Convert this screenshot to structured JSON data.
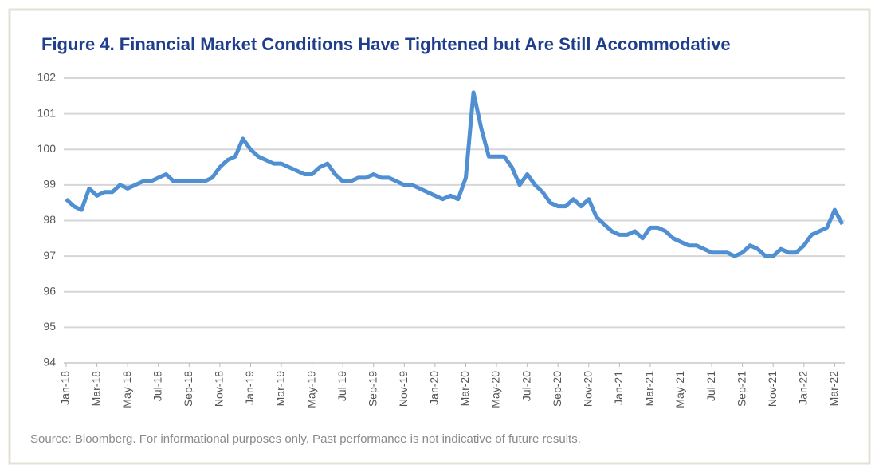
{
  "chart_data": {
    "type": "line",
    "title": "Figure 4. Financial Market Conditions Have Tightened but Are Still Accommodative",
    "source": "Source: Bloomberg. For informational purposes only. Past performance is not indicative of  future results.",
    "categories": [
      "Jan-18",
      null,
      null,
      null,
      "Mar-18",
      null,
      null,
      null,
      "May-18",
      null,
      null,
      null,
      "Jul-18",
      null,
      null,
      null,
      "Sep-18",
      null,
      null,
      null,
      "Nov-18",
      null,
      null,
      null,
      "Jan-19",
      null,
      null,
      null,
      "Mar-19",
      null,
      null,
      null,
      "May-19",
      null,
      null,
      null,
      "Jul-19",
      null,
      null,
      null,
      "Sep-19",
      null,
      null,
      null,
      "Nov-19",
      null,
      null,
      null,
      "Jan-20",
      null,
      null,
      null,
      "Mar-20",
      null,
      null,
      null,
      "May-20",
      null,
      null,
      null,
      "Jul-20",
      null,
      null,
      null,
      "Sep-20",
      null,
      null,
      null,
      "Nov-20",
      null,
      null,
      null,
      "Jan-21",
      null,
      null,
      null,
      "Mar-21",
      null,
      null,
      null,
      "May-21",
      null,
      null,
      null,
      "Jul-21",
      null,
      null,
      null,
      "Sep-21",
      null,
      null,
      null,
      "Nov-21",
      null,
      null,
      null,
      "Jan-22",
      null,
      null,
      null,
      "Mar-22",
      null
    ],
    "series": [
      {
        "color": "#4f8fd2",
        "values": [
          98.6,
          98.4,
          98.3,
          98.9,
          98.7,
          98.8,
          98.8,
          99.0,
          98.9,
          99.0,
          99.1,
          99.1,
          99.2,
          99.3,
          99.1,
          99.1,
          99.1,
          99.1,
          99.1,
          99.2,
          99.5,
          99.7,
          99.8,
          100.3,
          100.0,
          99.8,
          99.7,
          99.6,
          99.6,
          99.5,
          99.4,
          99.3,
          99.3,
          99.5,
          99.6,
          99.3,
          99.1,
          99.1,
          99.2,
          99.2,
          99.3,
          99.2,
          99.2,
          99.1,
          99.0,
          99.0,
          98.9,
          98.8,
          98.7,
          98.6,
          98.7,
          98.6,
          99.2,
          101.6,
          100.6,
          99.8,
          99.8,
          99.8,
          99.5,
          99.0,
          99.3,
          99.0,
          98.8,
          98.5,
          98.4,
          98.4,
          98.6,
          98.4,
          98.6,
          98.1,
          97.9,
          97.7,
          97.6,
          97.6,
          97.7,
          97.5,
          97.8,
          97.8,
          97.7,
          97.5,
          97.4,
          97.3,
          97.3,
          97.2,
          97.1,
          97.1,
          97.1,
          97.0,
          97.1,
          97.3,
          97.2,
          97.0,
          97.0,
          97.2,
          97.1,
          97.1,
          97.3,
          97.6,
          97.7,
          97.8,
          98.3,
          97.9
        ]
      }
    ],
    "ylim": [
      94,
      102
    ],
    "yticks": [
      94,
      95,
      96,
      97,
      98,
      99,
      100,
      101,
      102
    ],
    "grid": true
  }
}
